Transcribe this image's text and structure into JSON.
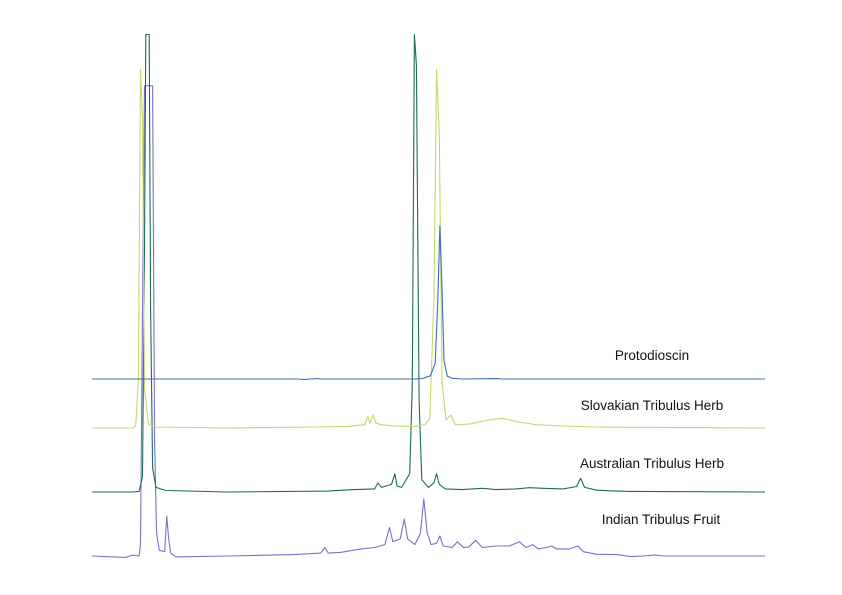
{
  "chart_data": {
    "type": "line",
    "title": "",
    "xlabel": "",
    "ylabel": "",
    "x_range": [
      0,
      100
    ],
    "y_range": [
      0,
      100
    ],
    "grid": false,
    "legend": "none",
    "series": [
      {
        "name": "Protodioscin",
        "color": "#3f6fa6",
        "baseline": 0,
        "points": [
          [
            0,
            0
          ],
          [
            20,
            0
          ],
          [
            26,
            0
          ],
          [
            30.5,
            0
          ],
          [
            31.5,
            -0.2
          ],
          [
            32.5,
            0
          ],
          [
            33.5,
            0.3
          ],
          [
            34,
            0
          ],
          [
            48,
            0
          ],
          [
            49.2,
            0.3
          ],
          [
            49.8,
            1.2
          ],
          [
            50.3,
            1.8
          ],
          [
            51,
            9
          ],
          [
            51.4,
            45
          ],
          [
            51.7,
            85
          ],
          [
            52,
            50
          ],
          [
            52.3,
            10
          ],
          [
            52.8,
            1.5
          ],
          [
            53.5,
            0.4
          ],
          [
            55,
            0
          ],
          [
            60,
            0.2
          ],
          [
            61,
            0
          ],
          [
            100,
            0
          ]
        ],
        "peaks": [
          {
            "x": 51.7,
            "height": 85
          }
        ]
      },
      {
        "name": "Slovakian Tribulus Herb",
        "color": "#c6d86e",
        "baseline": 0,
        "points": [
          [
            0,
            0
          ],
          [
            6,
            0
          ],
          [
            6.5,
            0.6
          ],
          [
            6.9,
            15
          ],
          [
            7.2,
            110
          ],
          [
            7.5,
            95
          ],
          [
            7.8,
            12
          ],
          [
            8.4,
            1
          ],
          [
            9.5,
            0.3
          ],
          [
            20,
            0
          ],
          [
            33,
            0.3
          ],
          [
            38,
            0.5
          ],
          [
            40.5,
            1
          ],
          [
            41,
            3.5
          ],
          [
            41.3,
            1.5
          ],
          [
            41.8,
            4
          ],
          [
            42.2,
            1.5
          ],
          [
            43,
            1
          ],
          [
            45,
            0.6
          ],
          [
            48,
            0.5
          ],
          [
            49.5,
            1
          ],
          [
            50.2,
            3
          ],
          [
            50.8,
            40
          ],
          [
            51.2,
            110
          ],
          [
            51.6,
            90
          ],
          [
            52,
            14
          ],
          [
            52.6,
            2.5
          ],
          [
            53.3,
            4
          ],
          [
            54,
            1
          ],
          [
            56,
            1.2
          ],
          [
            59,
            2.5
          ],
          [
            61,
            3
          ],
          [
            63,
            2
          ],
          [
            66,
            1
          ],
          [
            70,
            0.6
          ],
          [
            75,
            0.3
          ],
          [
            80,
            0.2
          ],
          [
            100,
            0
          ]
        ],
        "peaks": [
          {
            "x": 7.2,
            "height": 110
          },
          {
            "x": 51.2,
            "height": 110
          }
        ]
      },
      {
        "name": "Australian Tribulus Herb",
        "color": "#1d6b58",
        "baseline": 0,
        "points": [
          [
            0,
            0
          ],
          [
            6,
            0
          ],
          [
            7,
            0.2
          ],
          [
            7.5,
            5
          ],
          [
            7.8,
            80
          ],
          [
            8,
            150
          ],
          [
            8.5,
            150
          ],
          [
            8.7,
            60
          ],
          [
            9,
            8
          ],
          [
            9.5,
            1.5
          ],
          [
            11,
            0.5
          ],
          [
            20,
            0
          ],
          [
            35,
            0.3
          ],
          [
            39,
            0.8
          ],
          [
            42,
            1
          ],
          [
            42.5,
            3
          ],
          [
            43,
            1.5
          ],
          [
            44.5,
            2.5
          ],
          [
            45,
            6
          ],
          [
            45.3,
            2
          ],
          [
            46,
            1.5
          ],
          [
            47.2,
            6
          ],
          [
            47.6,
            35
          ],
          [
            47.9,
            150
          ],
          [
            48.2,
            140
          ],
          [
            48.6,
            30
          ],
          [
            49,
            4
          ],
          [
            50,
            1.5
          ],
          [
            50.8,
            3
          ],
          [
            51.2,
            6
          ],
          [
            51.6,
            2.5
          ],
          [
            52.5,
            1
          ],
          [
            55,
            0.8
          ],
          [
            58,
            1.2
          ],
          [
            60,
            0.8
          ],
          [
            63,
            1
          ],
          [
            65,
            1.4
          ],
          [
            67,
            1.2
          ],
          [
            70,
            1
          ],
          [
            72,
            1.8
          ],
          [
            72.6,
            4.5
          ],
          [
            73.2,
            1.5
          ],
          [
            75,
            0.6
          ],
          [
            77,
            0.4
          ],
          [
            80,
            0.2
          ],
          [
            100,
            0
          ]
        ],
        "peaks": [
          {
            "x": 8.2,
            "height": 150
          },
          {
            "x": 47.9,
            "height": 150
          }
        ]
      },
      {
        "name": "Indian Tribulus Fruit",
        "color": "#7a70c8",
        "baseline": 0,
        "points": [
          [
            0,
            0
          ],
          [
            5,
            -0.5
          ],
          [
            6,
            0.3
          ],
          [
            7,
            0
          ],
          [
            7.2,
            4
          ],
          [
            7.5,
            85
          ],
          [
            7.8,
            165
          ],
          [
            9,
            165
          ],
          [
            9.3,
            40
          ],
          [
            9.6,
            8
          ],
          [
            10,
            2
          ],
          [
            10.8,
            1.5
          ],
          [
            11.1,
            14
          ],
          [
            11.4,
            6
          ],
          [
            11.7,
            1
          ],
          [
            12.5,
            -0.3
          ],
          [
            20,
            0
          ],
          [
            30,
            0.5
          ],
          [
            34,
            1
          ],
          [
            34.6,
            3
          ],
          [
            35.1,
            1
          ],
          [
            37,
            1.3
          ],
          [
            40,
            2.5
          ],
          [
            42,
            3
          ],
          [
            43.5,
            4
          ],
          [
            44.2,
            10
          ],
          [
            44.7,
            5
          ],
          [
            45.8,
            6
          ],
          [
            46.4,
            13
          ],
          [
            46.9,
            6
          ],
          [
            48,
            4
          ],
          [
            48.8,
            8
          ],
          [
            49.3,
            20
          ],
          [
            49.8,
            8
          ],
          [
            50.4,
            4
          ],
          [
            51.2,
            4.5
          ],
          [
            51.7,
            7
          ],
          [
            52.2,
            3.5
          ],
          [
            53.5,
            3
          ],
          [
            54.3,
            5
          ],
          [
            55.2,
            3
          ],
          [
            56,
            3.2
          ],
          [
            57,
            5.5
          ],
          [
            58,
            3
          ],
          [
            60,
            3.5
          ],
          [
            62,
            3.5
          ],
          [
            63.5,
            5
          ],
          [
            64.5,
            3
          ],
          [
            65.5,
            4
          ],
          [
            66.3,
            2.5
          ],
          [
            67.5,
            3
          ],
          [
            68.3,
            3.5
          ],
          [
            69,
            2.5
          ],
          [
            71,
            2.5
          ],
          [
            72.2,
            3.5
          ],
          [
            73,
            1.5
          ],
          [
            75,
            0.6
          ],
          [
            78,
            0.5
          ],
          [
            80,
            -0.2
          ],
          [
            82,
            0
          ],
          [
            83.5,
            0.4
          ],
          [
            85,
            0
          ],
          [
            100,
            0
          ]
        ],
        "peaks": [
          {
            "x": 8.3,
            "height": 165
          },
          {
            "x": 11.1,
            "height": 14
          },
          {
            "x": 49.3,
            "height": 20
          }
        ]
      }
    ]
  }
}
